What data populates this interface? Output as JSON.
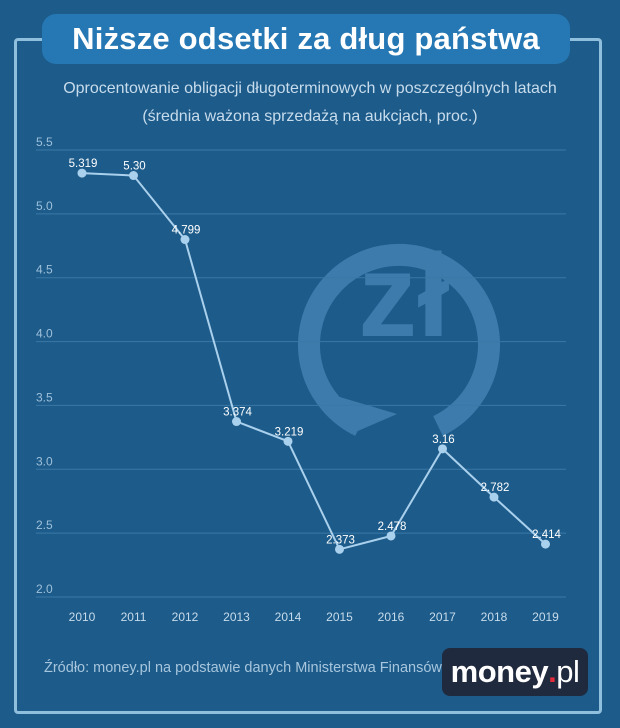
{
  "header": {
    "title": "Niższe odsetki za dług państwa",
    "subtitle_line1": "Oprocentowanie obligacji długoterminowych w poszczególnych latach",
    "subtitle_line2": "(średnia ważona sprzedażą na aukcjach, proc.)"
  },
  "footer": {
    "source": "Źródło: money.pl na podstawie danych Ministerstwa Finansów",
    "brand_main": "money",
    "brand_dot": ".",
    "brand_tld": "pl"
  },
  "colors": {
    "background": "#1d5b8a",
    "title_box": "#2678b4",
    "line": "#a9d0ec",
    "point": "#a9d0ec",
    "watermark": "#3c7bab"
  },
  "watermark": {
    "text": "zł",
    "icon": "zloty-circular-arrow-icon"
  },
  "chart_data": {
    "type": "line",
    "title": "",
    "xlabel": "",
    "ylabel": "",
    "ylim": [
      2.0,
      5.5
    ],
    "yticks": [
      "2.0",
      "2.5",
      "3.0",
      "3.5",
      "4.0",
      "4.5",
      "5.0",
      "5.5"
    ],
    "grid": true,
    "categories": [
      "2010",
      "2011",
      "2012",
      "2013",
      "2014",
      "2015",
      "2016",
      "2017",
      "2018",
      "2019"
    ],
    "series": [
      {
        "values": [
          5.319,
          5.3,
          4.799,
          3.374,
          3.219,
          2.373,
          2.478,
          3.16,
          2.782,
          2.414
        ],
        "labels": [
          "5.319",
          "5.30",
          "4.799",
          "3.374",
          "3.219",
          "2.373",
          "2.478",
          "3.16",
          "2.782",
          "2.414"
        ]
      }
    ]
  }
}
